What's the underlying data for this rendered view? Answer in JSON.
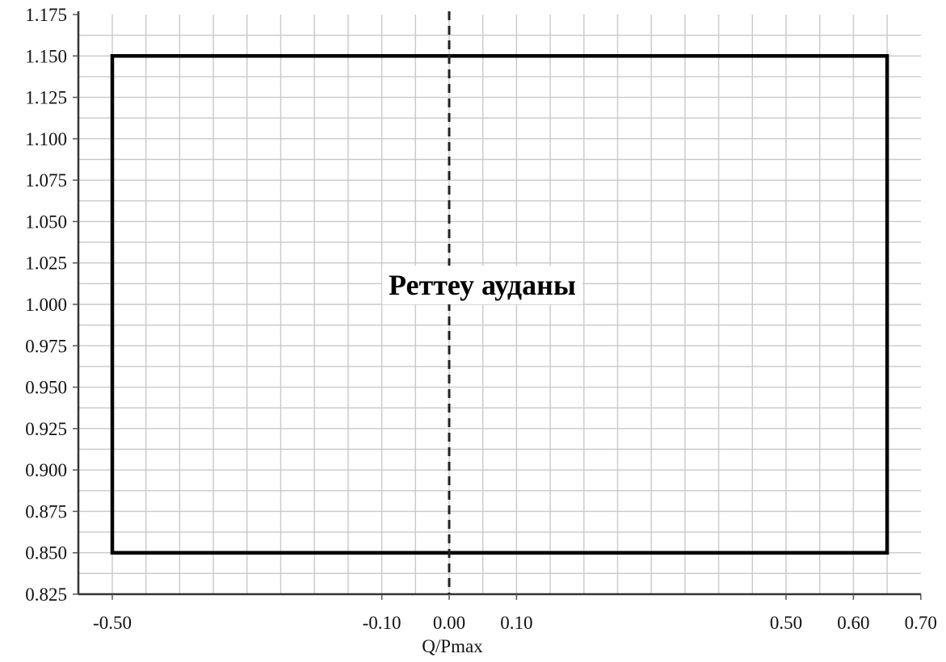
{
  "chart_data": {
    "type": "area",
    "title": "",
    "xlabel": "Q/Pmax",
    "ylabel": "",
    "xlim": [
      -0.5,
      0.7
    ],
    "ylim": [
      0.825,
      1.175
    ],
    "grid": true,
    "x_ticks": [
      -0.5,
      -0.1,
      0.0,
      0.1,
      0.5,
      0.6,
      0.7
    ],
    "x_tick_labels": [
      "-0.50",
      "-0.10",
      "0.00",
      "0.10",
      "0.50",
      "0.60",
      "0.70"
    ],
    "y_ticks": [
      0.825,
      0.85,
      0.875,
      0.9,
      0.925,
      0.95,
      0.975,
      1.0,
      1.025,
      1.05,
      1.075,
      1.1,
      1.125,
      1.15,
      1.175
    ],
    "y_tick_labels": [
      "0.825",
      "0.850",
      "0.875",
      "0.900",
      "0.925",
      "0.950",
      "0.975",
      "1.000",
      "1.025",
      "1.050",
      "1.075",
      "1.100",
      "1.125",
      "1.150",
      "1.175"
    ],
    "region": {
      "label": "Реттеу ауданы",
      "x": [
        -0.5,
        0.65
      ],
      "y": [
        0.85,
        1.15
      ]
    },
    "reference_line": {
      "x": 0.0,
      "style": "dashed"
    }
  }
}
